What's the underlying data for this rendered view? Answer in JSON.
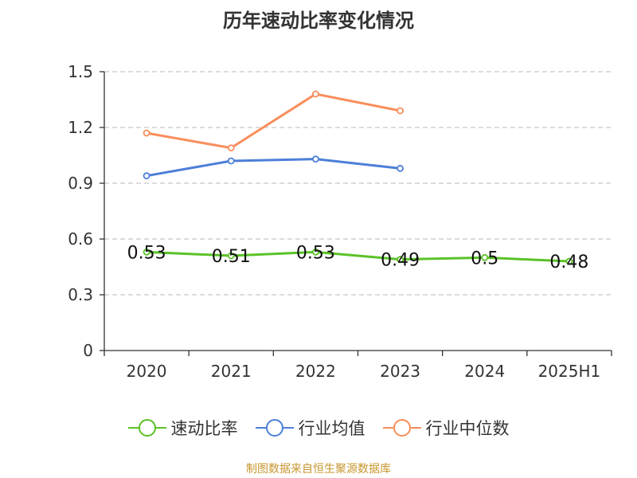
{
  "title": "历年速动比率变化情况",
  "source_note": "制图数据来自恒生聚源数据库",
  "chart_data": {
    "type": "line",
    "title": "历年速动比率变化情况",
    "categories": [
      "2020",
      "2021",
      "2022",
      "2023",
      "2024",
      "2025H1"
    ],
    "ylim": [
      0,
      1.5
    ],
    "yticks": [
      "0",
      "0.3",
      "0.6",
      "0.9",
      "1.2",
      "1.5"
    ],
    "grid": true,
    "legend_position": "bottom",
    "series": [
      {
        "name": "速动比率",
        "color": "#5bc227",
        "values": [
          0.53,
          0.51,
          0.53,
          0.49,
          0.5,
          0.48
        ],
        "labels": [
          "0.53",
          "0.51",
          "0.53",
          "0.49",
          "0.5",
          "0.48"
        ]
      },
      {
        "name": "行业均值",
        "color": "#4d7fd8",
        "values": [
          0.94,
          1.02,
          1.03,
          0.98,
          null,
          null
        ]
      },
      {
        "name": "行业中位数",
        "color": "#f98e5c",
        "values": [
          1.17,
          1.09,
          1.38,
          1.29,
          null,
          null
        ]
      }
    ]
  }
}
